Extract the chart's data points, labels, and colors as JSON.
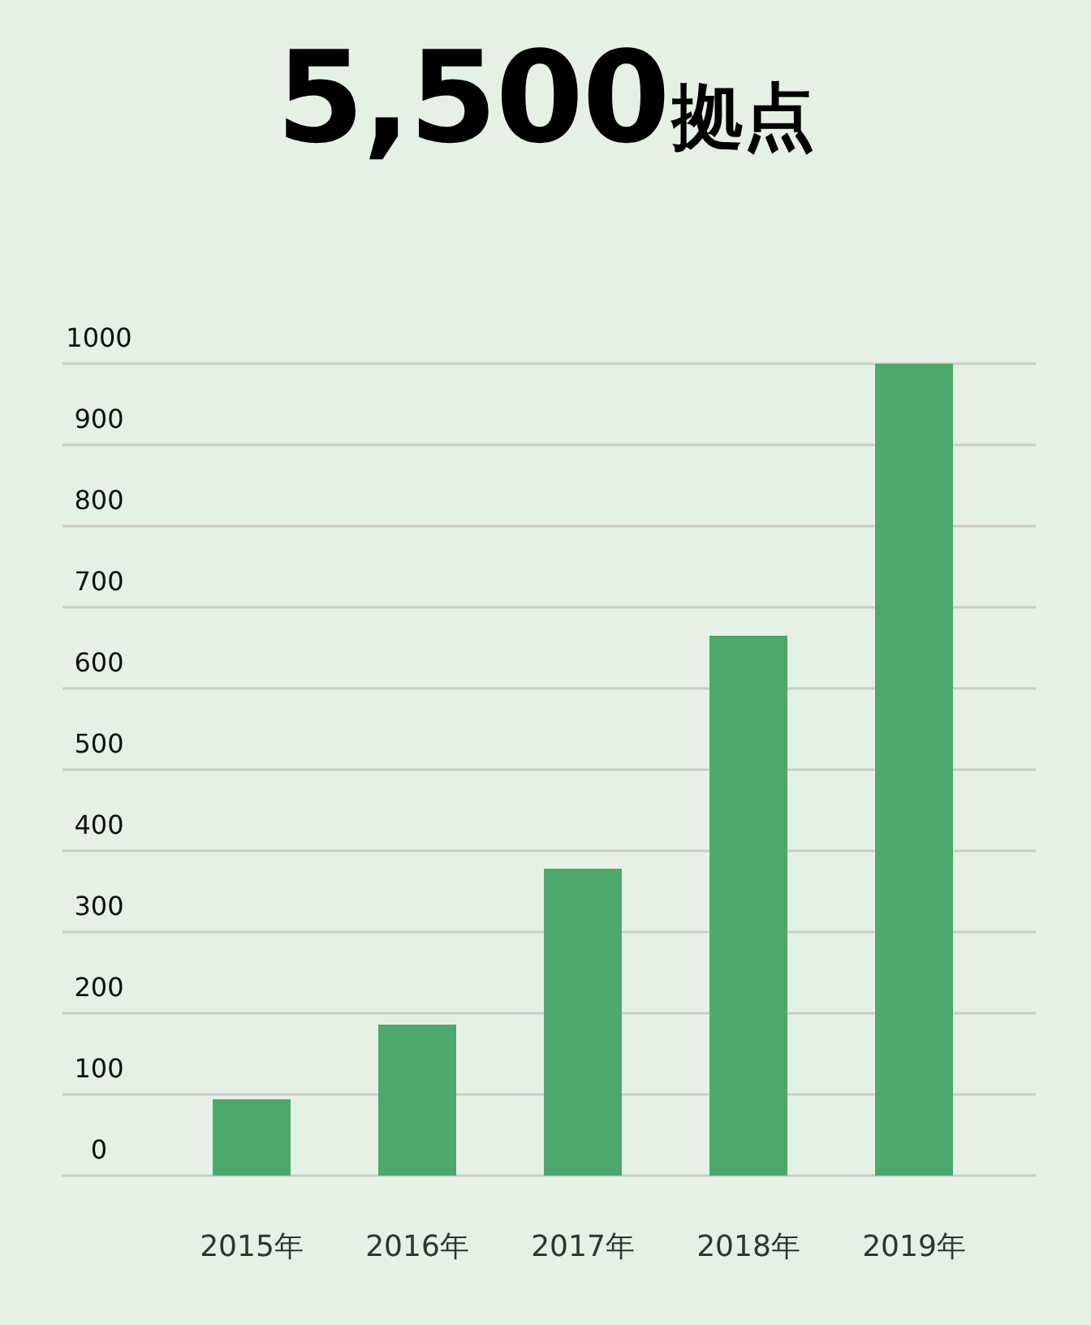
{
  "chart_data": {
    "type": "bar",
    "title": "5,500拠点",
    "categories": [
      "2015年",
      "2016年",
      "2017年",
      "2018年",
      "2019年"
    ],
    "values": [
      94,
      186,
      378,
      665,
      1000
    ],
    "color": "#4ca86b",
    "ylim": [
      0,
      1000
    ],
    "yticks": [
      0,
      100,
      200,
      300,
      400,
      500,
      600,
      700,
      800,
      900,
      1000
    ],
    "grid": "y"
  }
}
